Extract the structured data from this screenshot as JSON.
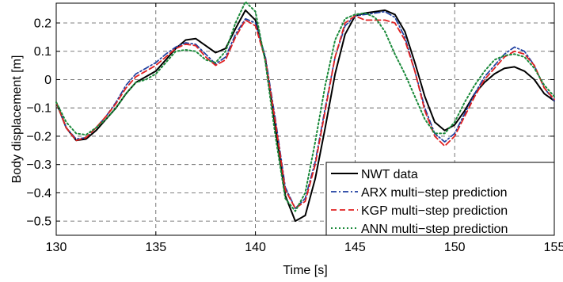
{
  "chart_data": {
    "type": "line",
    "title": "",
    "xlabel": "Time [s]",
    "ylabel": "Body displacement [m]",
    "xlim": [
      130,
      155
    ],
    "ylim": [
      -0.55,
      0.27
    ],
    "xticks": [
      130,
      135,
      140,
      145,
      150,
      155
    ],
    "xtick_labels": [
      "130",
      "135",
      "140",
      "145",
      "150",
      "155"
    ],
    "yticks": [
      -0.5,
      -0.4,
      -0.3,
      -0.2,
      -0.1,
      0,
      0.1,
      0.2
    ],
    "ytick_labels": [
      "−0.5",
      "−0.4",
      "−0.3",
      "−0.2",
      "−0.1",
      "0",
      "0.1",
      "0.2"
    ],
    "grid": true,
    "legend_position": "bottom-right",
    "series": [
      {
        "name": "NWT data",
        "color": "#000000",
        "dash": "solid",
        "points": [
          [
            130,
            -0.08
          ],
          [
            130.5,
            -0.17
          ],
          [
            131,
            -0.215
          ],
          [
            131.5,
            -0.21
          ],
          [
            132,
            -0.18
          ],
          [
            132.5,
            -0.14
          ],
          [
            133,
            -0.1
          ],
          [
            133.5,
            -0.05
          ],
          [
            134,
            -0.01
          ],
          [
            134.5,
            0.01
          ],
          [
            135,
            0.03
          ],
          [
            135.5,
            0.07
          ],
          [
            136,
            0.11
          ],
          [
            136.5,
            0.14
          ],
          [
            137,
            0.145
          ],
          [
            137.5,
            0.12
          ],
          [
            138,
            0.095
          ],
          [
            138.5,
            0.11
          ],
          [
            139,
            0.18
          ],
          [
            139.5,
            0.245
          ],
          [
            140,
            0.21
          ],
          [
            140.5,
            0.07
          ],
          [
            141,
            -0.17
          ],
          [
            141.5,
            -0.41
          ],
          [
            142,
            -0.5
          ],
          [
            142.5,
            -0.48
          ],
          [
            143,
            -0.35
          ],
          [
            143.5,
            -0.17
          ],
          [
            144,
            0.02
          ],
          [
            144.5,
            0.16
          ],
          [
            145,
            0.225
          ],
          [
            145.5,
            0.235
          ],
          [
            146,
            0.24
          ],
          [
            146.5,
            0.245
          ],
          [
            147,
            0.23
          ],
          [
            147.5,
            0.17
          ],
          [
            148,
            0.06
          ],
          [
            148.5,
            -0.06
          ],
          [
            149,
            -0.15
          ],
          [
            149.5,
            -0.18
          ],
          [
            150,
            -0.16
          ],
          [
            150.5,
            -0.11
          ],
          [
            151,
            -0.05
          ],
          [
            151.5,
            -0.01
          ],
          [
            152,
            0.02
          ],
          [
            152.5,
            0.04
          ],
          [
            153,
            0.045
          ],
          [
            153.5,
            0.03
          ],
          [
            154,
            0.0
          ],
          [
            154.5,
            -0.05
          ],
          [
            155,
            -0.075
          ]
        ]
      },
      {
        "name": "ARX multi−step prediction",
        "color": "#1f3fa0",
        "dash": "dashdot",
        "points": [
          [
            130,
            -0.08
          ],
          [
            130.5,
            -0.17
          ],
          [
            131,
            -0.21
          ],
          [
            131.5,
            -0.205
          ],
          [
            132,
            -0.17
          ],
          [
            132.5,
            -0.13
          ],
          [
            133,
            -0.08
          ],
          [
            133.5,
            -0.02
          ],
          [
            134,
            0.02
          ],
          [
            134.5,
            0.04
          ],
          [
            135,
            0.06
          ],
          [
            135.5,
            0.09
          ],
          [
            136,
            0.115
          ],
          [
            136.5,
            0.13
          ],
          [
            137,
            0.125
          ],
          [
            137.5,
            0.09
          ],
          [
            138,
            0.055
          ],
          [
            138.5,
            0.08
          ],
          [
            139,
            0.16
          ],
          [
            139.5,
            0.215
          ],
          [
            140,
            0.2
          ],
          [
            140.5,
            0.08
          ],
          [
            141,
            -0.14
          ],
          [
            141.5,
            -0.38
          ],
          [
            142,
            -0.455
          ],
          [
            142.5,
            -0.42
          ],
          [
            143,
            -0.29
          ],
          [
            143.5,
            -0.1
          ],
          [
            144,
            0.08
          ],
          [
            144.5,
            0.19
          ],
          [
            145,
            0.225
          ],
          [
            145.5,
            0.23
          ],
          [
            146,
            0.235
          ],
          [
            146.5,
            0.24
          ],
          [
            147,
            0.22
          ],
          [
            147.5,
            0.15
          ],
          [
            148,
            0.03
          ],
          [
            148.5,
            -0.1
          ],
          [
            149,
            -0.19
          ],
          [
            149.5,
            -0.22
          ],
          [
            150,
            -0.19
          ],
          [
            150.5,
            -0.12
          ],
          [
            151,
            -0.05
          ],
          [
            151.5,
            0.01
          ],
          [
            152,
            0.05
          ],
          [
            152.5,
            0.09
          ],
          [
            153,
            0.115
          ],
          [
            153.5,
            0.1
          ],
          [
            154,
            0.05
          ],
          [
            154.5,
            -0.03
          ],
          [
            155,
            -0.075
          ]
        ]
      },
      {
        "name": "KGP multi−step prediction",
        "color": "#e02020",
        "dash": "dashed",
        "points": [
          [
            130,
            -0.08
          ],
          [
            130.5,
            -0.17
          ],
          [
            131,
            -0.215
          ],
          [
            131.5,
            -0.205
          ],
          [
            132,
            -0.17
          ],
          [
            132.5,
            -0.13
          ],
          [
            133,
            -0.085
          ],
          [
            133.5,
            -0.03
          ],
          [
            134,
            0.01
          ],
          [
            134.5,
            0.03
          ],
          [
            135,
            0.05
          ],
          [
            135.5,
            0.08
          ],
          [
            136,
            0.11
          ],
          [
            136.5,
            0.125
          ],
          [
            137,
            0.12
          ],
          [
            137.5,
            0.08
          ],
          [
            138,
            0.05
          ],
          [
            138.5,
            0.07
          ],
          [
            139,
            0.15
          ],
          [
            139.5,
            0.21
          ],
          [
            140,
            0.19
          ],
          [
            140.5,
            0.07
          ],
          [
            141,
            -0.15
          ],
          [
            141.5,
            -0.39
          ],
          [
            142,
            -0.455
          ],
          [
            142.5,
            -0.43
          ],
          [
            143,
            -0.3
          ],
          [
            143.5,
            -0.11
          ],
          [
            144,
            0.08
          ],
          [
            144.5,
            0.2
          ],
          [
            145,
            0.225
          ],
          [
            145.5,
            0.21
          ],
          [
            146,
            0.21
          ],
          [
            146.5,
            0.21
          ],
          [
            147,
            0.2
          ],
          [
            147.5,
            0.14
          ],
          [
            148,
            0.03
          ],
          [
            148.5,
            -0.11
          ],
          [
            149,
            -0.2
          ],
          [
            149.5,
            -0.235
          ],
          [
            150,
            -0.2
          ],
          [
            150.5,
            -0.13
          ],
          [
            151,
            -0.06
          ],
          [
            151.5,
            0.0
          ],
          [
            152,
            0.04
          ],
          [
            152.5,
            0.08
          ],
          [
            153,
            0.1
          ],
          [
            153.5,
            0.09
          ],
          [
            154,
            0.05
          ],
          [
            154.5,
            -0.03
          ],
          [
            155,
            -0.07
          ]
        ]
      },
      {
        "name": "ANN multi−step prediction",
        "color": "#1a8a3a",
        "dash": "dotted",
        "points": [
          [
            130,
            -0.08
          ],
          [
            130.5,
            -0.15
          ],
          [
            131,
            -0.19
          ],
          [
            131.5,
            -0.195
          ],
          [
            132,
            -0.17
          ],
          [
            132.5,
            -0.14
          ],
          [
            133,
            -0.1
          ],
          [
            133.5,
            -0.05
          ],
          [
            134,
            -0.01
          ],
          [
            134.5,
            0.0
          ],
          [
            135,
            0.02
          ],
          [
            135.5,
            0.06
          ],
          [
            136,
            0.1
          ],
          [
            136.5,
            0.105
          ],
          [
            137,
            0.1
          ],
          [
            137.5,
            0.07
          ],
          [
            138,
            0.06
          ],
          [
            138.5,
            0.1
          ],
          [
            139,
            0.2
          ],
          [
            139.5,
            0.275
          ],
          [
            140,
            0.24
          ],
          [
            140.5,
            0.06
          ],
          [
            141,
            -0.2
          ],
          [
            141.5,
            -0.42
          ],
          [
            142,
            -0.465
          ],
          [
            142.5,
            -0.4
          ],
          [
            143,
            -0.22
          ],
          [
            143.5,
            -0.02
          ],
          [
            144,
            0.14
          ],
          [
            144.5,
            0.215
          ],
          [
            145,
            0.23
          ],
          [
            145.5,
            0.235
          ],
          [
            146,
            0.22
          ],
          [
            146.5,
            0.17
          ],
          [
            147,
            0.09
          ],
          [
            147.5,
            0.02
          ],
          [
            148,
            -0.06
          ],
          [
            148.5,
            -0.14
          ],
          [
            149,
            -0.19
          ],
          [
            149.5,
            -0.19
          ],
          [
            150,
            -0.15
          ],
          [
            150.5,
            -0.08
          ],
          [
            151,
            -0.02
          ],
          [
            151.5,
            0.03
          ],
          [
            152,
            0.07
          ],
          [
            152.5,
            0.085
          ],
          [
            153,
            0.09
          ],
          [
            153.5,
            0.08
          ],
          [
            154,
            0.04
          ],
          [
            154.5,
            -0.02
          ],
          [
            155,
            -0.06
          ]
        ]
      }
    ]
  }
}
